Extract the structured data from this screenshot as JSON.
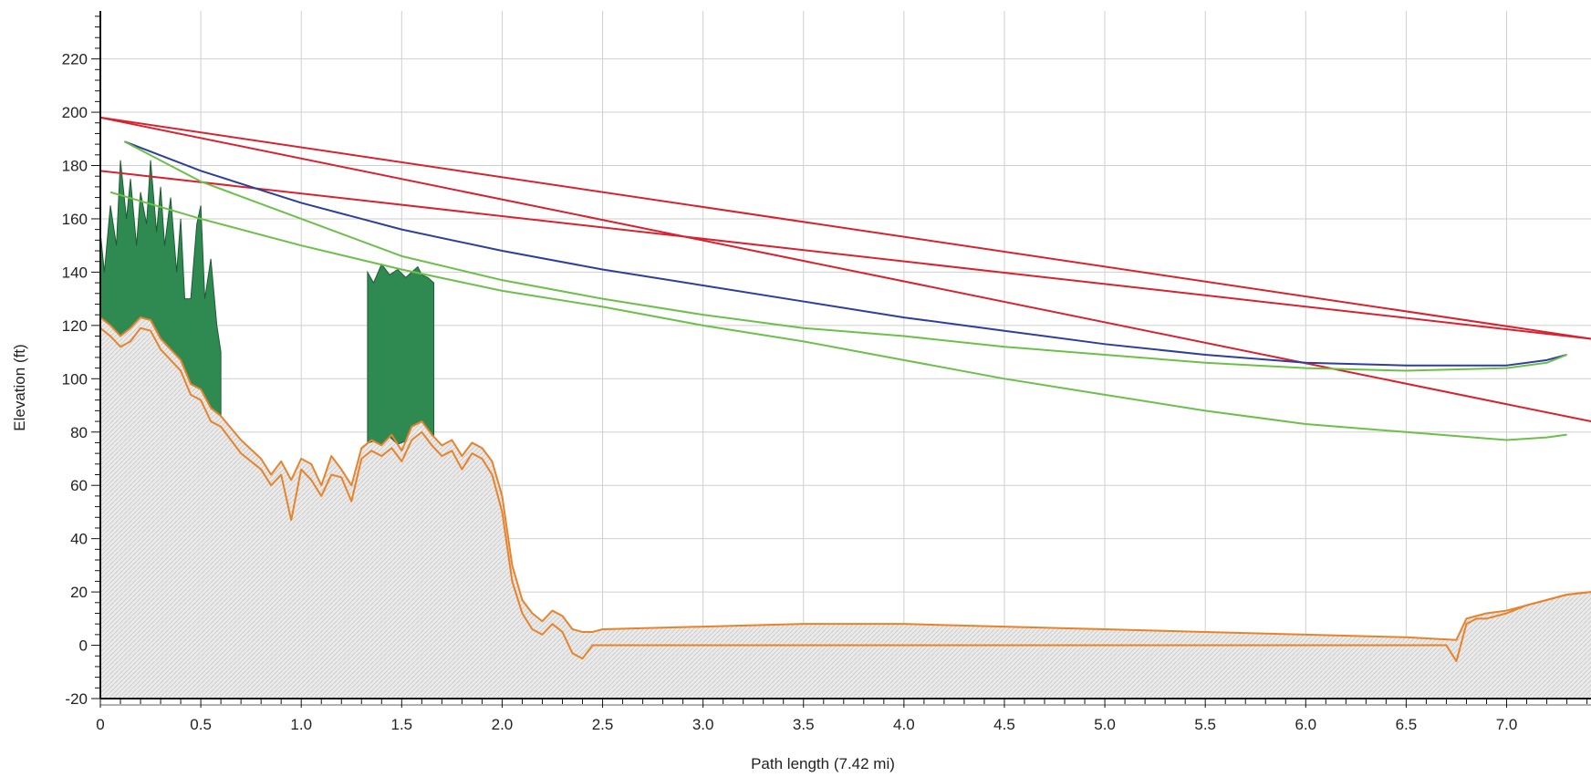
{
  "chart_data": {
    "type": "line",
    "title": "",
    "xlabel": "Path length (7.42 mi)",
    "ylabel": "Elevation (ft)",
    "xlim": [
      0,
      7.42
    ],
    "ylim": [
      -20,
      238
    ],
    "x_ticks": [
      0,
      0.5,
      1.0,
      1.5,
      2.0,
      2.5,
      3.0,
      3.5,
      4.0,
      4.5,
      5.0,
      5.5,
      6.0,
      6.5,
      7.0
    ],
    "x_tick_labels": [
      "0",
      "0.5",
      "1.0",
      "1.5",
      "2.0",
      "2.5",
      "3.0",
      "3.5",
      "4.0",
      "4.5",
      "5.0",
      "5.5",
      "6.0",
      "6.5",
      "7.0"
    ],
    "y_ticks": [
      -20,
      0,
      20,
      40,
      60,
      80,
      100,
      120,
      140,
      160,
      180,
      200,
      220
    ],
    "y_tick_labels": [
      "-20",
      "0",
      "20",
      "40",
      "60",
      "80",
      "100",
      "120",
      "140",
      "160",
      "180",
      "200",
      "220"
    ],
    "grid": true,
    "legend": "none",
    "colors": {
      "terrain": "#e8832a",
      "terrain_fill": "#e4e4e4",
      "vegetation": "#2f8a52",
      "red": "#d8222f",
      "blue": "#2e3e9c",
      "green": "#6cc04a",
      "grid": "#cfcfcf"
    },
    "series": [
      {
        "role": "terrain-upper",
        "x": [
          0,
          0.05,
          0.1,
          0.15,
          0.2,
          0.25,
          0.3,
          0.35,
          0.4,
          0.45,
          0.5,
          0.55,
          0.6,
          0.7,
          0.8,
          0.85,
          0.9,
          0.95,
          1.0,
          1.05,
          1.1,
          1.15,
          1.2,
          1.25,
          1.3,
          1.35,
          1.4,
          1.45,
          1.5,
          1.55,
          1.6,
          1.65,
          1.7,
          1.75,
          1.8,
          1.85,
          1.9,
          1.95,
          2.0,
          2.05,
          2.1,
          2.15,
          2.2,
          2.25,
          2.3,
          2.35,
          2.4,
          2.45,
          2.5,
          3.0,
          3.5,
          4.0,
          4.5,
          5.0,
          5.5,
          6.0,
          6.5,
          6.75,
          6.8,
          6.85,
          6.9,
          7.0,
          7.1,
          7.2,
          7.3,
          7.42
        ],
        "y": [
          123,
          120,
          116,
          119,
          123,
          122,
          115,
          111,
          107,
          98,
          96,
          89,
          86,
          77,
          70,
          64,
          69,
          62,
          70,
          68,
          60,
          71,
          66,
          60,
          74,
          77,
          75,
          79,
          73,
          82,
          84,
          79,
          75,
          77,
          71,
          76,
          74,
          69,
          56,
          30,
          17,
          12,
          9,
          13,
          11,
          6,
          5,
          5,
          6,
          7,
          8,
          8,
          7,
          6,
          5,
          4,
          3,
          2,
          10,
          11,
          12,
          13,
          15,
          17,
          19,
          20
        ]
      },
      {
        "role": "terrain-lower",
        "x": [
          0,
          0.05,
          0.1,
          0.15,
          0.2,
          0.25,
          0.3,
          0.35,
          0.4,
          0.45,
          0.5,
          0.55,
          0.6,
          0.7,
          0.8,
          0.85,
          0.9,
          0.95,
          1.0,
          1.05,
          1.1,
          1.15,
          1.2,
          1.25,
          1.3,
          1.35,
          1.4,
          1.45,
          1.5,
          1.55,
          1.6,
          1.65,
          1.7,
          1.75,
          1.8,
          1.85,
          1.9,
          1.95,
          2.0,
          2.05,
          2.1,
          2.15,
          2.2,
          2.25,
          2.3,
          2.35,
          2.4,
          2.45,
          2.5,
          3.0,
          3.5,
          4.0,
          4.5,
          5.0,
          5.5,
          6.0,
          6.5,
          6.7,
          6.75,
          6.8,
          6.85,
          6.9,
          7.0,
          7.1,
          7.2,
          7.3,
          7.42
        ],
        "y": [
          119,
          116,
          112,
          114,
          119,
          118,
          111,
          107,
          103,
          94,
          92,
          84,
          82,
          72,
          66,
          60,
          64,
          47,
          66,
          62,
          56,
          64,
          63,
          54,
          70,
          73,
          71,
          74,
          69,
          77,
          80,
          75,
          71,
          73,
          66,
          72,
          70,
          64,
          50,
          24,
          12,
          6,
          4,
          8,
          5,
          -3,
          -5,
          0,
          0,
          0,
          0,
          0,
          0,
          0,
          0,
          0,
          0,
          0,
          -6,
          8,
          10,
          10,
          12,
          15,
          17,
          19,
          20
        ]
      },
      {
        "role": "vegetation-block-1",
        "x": [
          0,
          0.02,
          0.05,
          0.08,
          0.1,
          0.13,
          0.15,
          0.18,
          0.2,
          0.23,
          0.25,
          0.28,
          0.3,
          0.32,
          0.35,
          0.38,
          0.4,
          0.42,
          0.45,
          0.48,
          0.5,
          0.52,
          0.55,
          0.58,
          0.6
        ],
        "y": [
          155,
          140,
          165,
          150,
          182,
          160,
          175,
          150,
          170,
          158,
          182,
          155,
          172,
          150,
          168,
          140,
          160,
          130,
          130,
          158,
          165,
          130,
          145,
          120,
          110
        ]
      },
      {
        "role": "vegetation-block-2",
        "x": [
          1.33,
          1.36,
          1.4,
          1.44,
          1.48,
          1.52,
          1.55,
          1.58,
          1.6,
          1.63,
          1.66
        ],
        "y": [
          140,
          136,
          143,
          139,
          141,
          138,
          140,
          142,
          139,
          138,
          136
        ]
      },
      {
        "name": "",
        "role": "red-1",
        "color": "#d8222f",
        "x": [
          0,
          7.42
        ],
        "y": [
          198,
          115
        ]
      },
      {
        "name": "",
        "role": "red-2",
        "color": "#d8222f",
        "x": [
          0,
          7.42
        ],
        "y": [
          198,
          84
        ]
      },
      {
        "name": "",
        "role": "red-3",
        "color": "#d8222f",
        "x": [
          0,
          7.42
        ],
        "y": [
          178,
          115
        ]
      },
      {
        "name": "",
        "role": "blue",
        "color": "#2e3e9c",
        "x": [
          0.12,
          0.5,
          1.0,
          1.5,
          2.0,
          2.5,
          3.0,
          3.5,
          4.0,
          4.5,
          5.0,
          5.5,
          6.0,
          6.5,
          7.0,
          7.2,
          7.3
        ],
        "y": [
          189,
          178,
          166,
          156,
          148,
          141,
          135,
          129,
          123,
          118,
          113,
          109,
          106,
          105,
          105,
          107,
          109
        ]
      },
      {
        "name": "",
        "role": "green-upper",
        "color": "#6cc04a",
        "x": [
          0.12,
          0.5,
          1.0,
          1.5,
          2.0,
          2.5,
          3.0,
          3.5,
          4.0,
          4.5,
          5.0,
          5.5,
          6.0,
          6.5,
          7.0,
          7.2,
          7.3
        ],
        "y": [
          189,
          174,
          160,
          146,
          137,
          130,
          124,
          119,
          116,
          112,
          109,
          106,
          104,
          103,
          104,
          106,
          109
        ]
      },
      {
        "name": "",
        "role": "green-lower",
        "color": "#6cc04a",
        "x": [
          0.05,
          0.5,
          1.0,
          1.5,
          2.0,
          2.5,
          3.0,
          3.5,
          4.0,
          4.5,
          5.0,
          5.5,
          6.0,
          6.5,
          7.0,
          7.2,
          7.3
        ],
        "y": [
          170,
          160,
          150,
          141,
          133,
          127,
          120,
          114,
          107,
          100,
          94,
          88,
          83,
          80,
          77,
          78,
          79
        ]
      }
    ]
  }
}
